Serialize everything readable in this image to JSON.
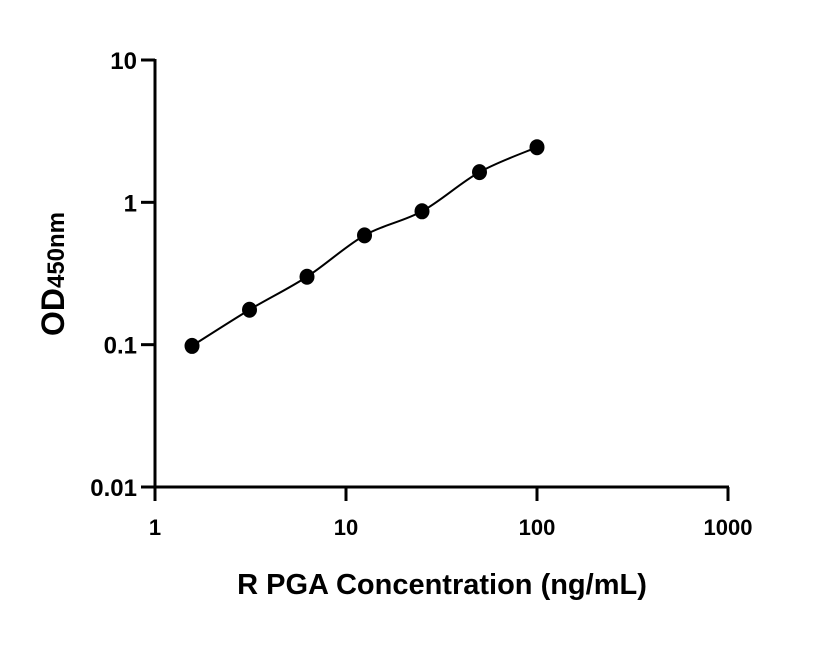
{
  "chart_data": {
    "type": "scatter",
    "title": "",
    "xlabel": "R PGA Concentration (ng/mL)",
    "ylabel": "OD",
    "ylabel_subscript": "450nm",
    "x_scale": "log",
    "y_scale": "log",
    "xlim": [
      1,
      1000
    ],
    "ylim": [
      0.01,
      10
    ],
    "x_ticks": [
      1,
      10,
      100,
      1000
    ],
    "x_tick_labels": [
      "1",
      "10",
      "100",
      "1000"
    ],
    "y_ticks": [
      0.01,
      0.1,
      1,
      10
    ],
    "y_tick_labels": [
      "0.01",
      "0.1",
      "1",
      "10"
    ],
    "grid": false,
    "legend": "none",
    "fit_curve": true,
    "marker_color": "#000000",
    "series": [
      {
        "x": [
          1.5625,
          3.125,
          6.25,
          12.5,
          25,
          50,
          100
        ],
        "y": [
          0.098,
          0.176,
          0.3,
          0.586,
          0.865,
          1.63,
          2.44
        ]
      }
    ]
  }
}
